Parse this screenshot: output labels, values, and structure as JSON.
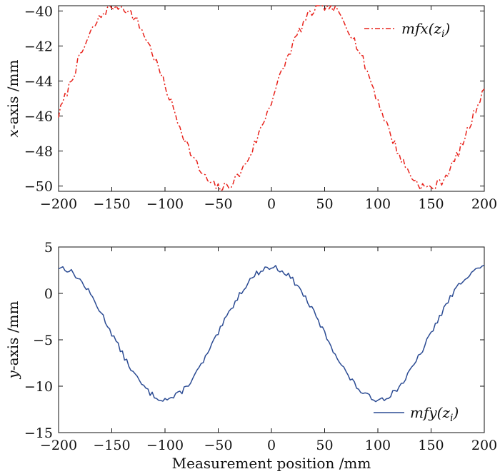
{
  "chart_data": [
    {
      "type": "line",
      "ylabel_var": "x",
      "ylabel_rest": "-axis /mm",
      "xlabel": "",
      "xlim": [
        -200,
        200
      ],
      "ylim": [
        -50.3,
        -39.7
      ],
      "xticks": [
        -200,
        -150,
        -100,
        -50,
        0,
        50,
        100,
        150,
        200
      ],
      "xtick_labels": [
        "−200",
        "−150",
        "−100",
        "−50",
        "0",
        "50",
        "100",
        "150",
        "200"
      ],
      "yticks": [
        -40,
        -42,
        -44,
        -46,
        -48,
        -50
      ],
      "ytick_labels": [
        "−40",
        "−42",
        "−44",
        "−46",
        "−48",
        "−50"
      ],
      "legend": {
        "main": "mfx(z",
        "sub": "i",
        "close": ")",
        "position": "top-right"
      },
      "series": [
        {
          "name": "mfx(z_i)",
          "color": "#e8231c",
          "style": "dashdot",
          "model": {
            "offset": -44.9,
            "amplitude": 5.2,
            "period": 195,
            "phase": 50,
            "noise": 0.55,
            "seed": 7
          },
          "x_start": -200,
          "x_end": 200,
          "x_step": 2
        }
      ]
    },
    {
      "type": "line",
      "ylabel_var": "y",
      "ylabel_rest": "-axis /mm",
      "xlabel": "Measurement position /mm",
      "xlim": [
        -200,
        200
      ],
      "ylim": [
        -15,
        5
      ],
      "xticks": [
        -200,
        -150,
        -100,
        -50,
        0,
        50,
        100,
        150,
        200
      ],
      "xtick_labels": [
        "−200",
        "−150",
        "−100",
        "−50",
        "0",
        "50",
        "100",
        "150",
        "200"
      ],
      "yticks": [
        5,
        0,
        -5,
        -10,
        -15
      ],
      "ytick_labels": [
        "5",
        "0",
        "−5",
        "−10",
        "−15"
      ],
      "legend": {
        "main": "mfy(z",
        "sub": "i",
        "close": ")",
        "position": "bottom-right"
      },
      "series": [
        {
          "name": "mfy(z_i)",
          "color": "#2b4b93",
          "style": "solid",
          "model": {
            "offset": -4.3,
            "amplitude": 7.1,
            "period": 200,
            "phase": 0,
            "noise": 0.6,
            "seed": 13
          },
          "x_start": -200,
          "x_end": 200,
          "x_step": 2
        }
      ]
    }
  ]
}
